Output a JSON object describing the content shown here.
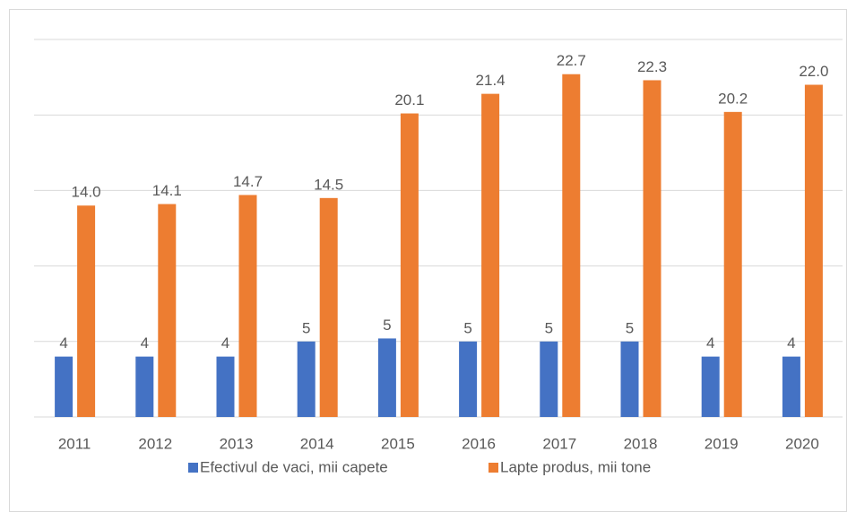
{
  "chart_data": {
    "type": "bar",
    "categories": [
      "2011",
      "2012",
      "2013",
      "2014",
      "2015",
      "2016",
      "2017",
      "2018",
      "2019",
      "2020"
    ],
    "series": [
      {
        "name": "Efectivul de vaci, mii capete",
        "color": "#4472c4",
        "values": [
          4,
          4,
          4,
          5,
          5.2,
          5,
          5,
          5,
          4,
          4
        ],
        "value_labels": [
          "4",
          "4",
          "4",
          "5",
          "5",
          "5",
          "5",
          "5",
          "4",
          "4"
        ]
      },
      {
        "name": "Lapte produs, mii tone",
        "color": "#ed7d31",
        "values": [
          14.0,
          14.1,
          14.7,
          14.5,
          20.1,
          21.4,
          22.7,
          22.3,
          20.2,
          22.0
        ],
        "value_labels": [
          "14.0",
          "14.1",
          "14.7",
          "14.5",
          "20.1",
          "21.4",
          "22.7",
          "22.3",
          "20.2",
          "22.0"
        ]
      }
    ],
    "ylim": [
      0,
      25
    ],
    "yticks": [
      0,
      5,
      10,
      15,
      20,
      25
    ],
    "grid": true,
    "legend": "bottom"
  }
}
